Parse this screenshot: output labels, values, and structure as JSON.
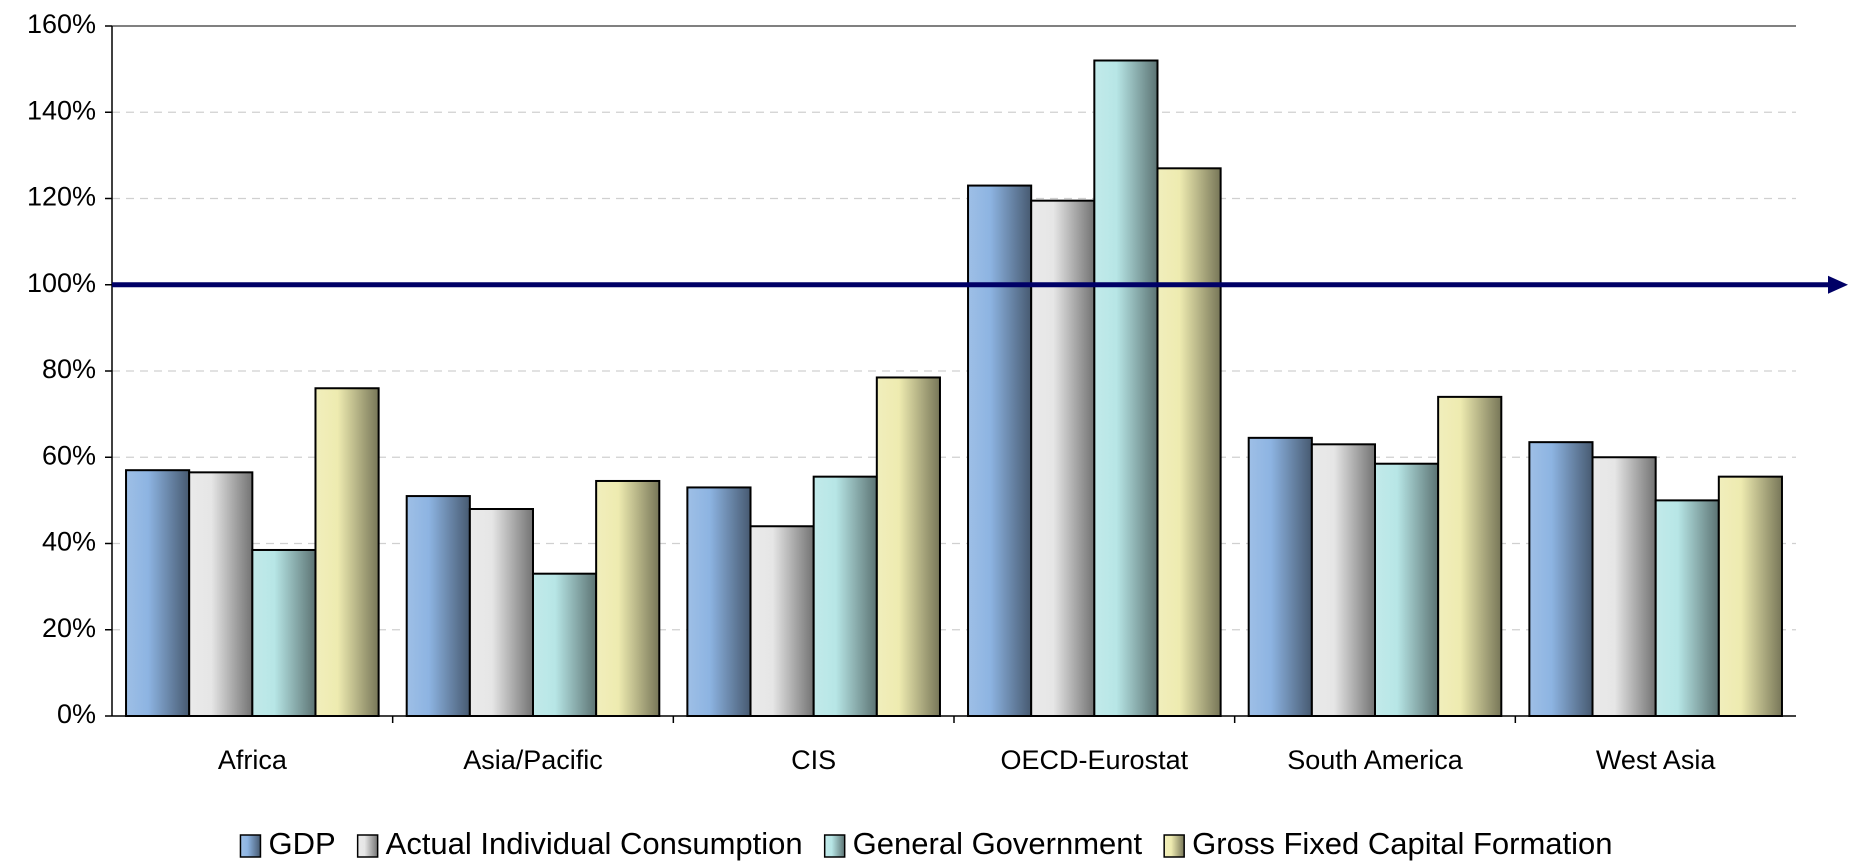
{
  "chart_data": {
    "type": "bar",
    "categories": [
      "Africa",
      "Asia/Pacific",
      "CIS",
      "OECD-Eurostat",
      "South America",
      "West Asia"
    ],
    "series": [
      {
        "name": "GDP",
        "color": "#8db4e2",
        "values": [
          57,
          51,
          53,
          123,
          64.5,
          63.5
        ]
      },
      {
        "name": "Actual Individual Consumption",
        "color": "#e6e6e6",
        "values": [
          56.5,
          48,
          44,
          119.5,
          63,
          60
        ]
      },
      {
        "name": "General Government",
        "color": "#b7e6e6",
        "values": [
          38.5,
          33,
          55.5,
          152,
          58.5,
          50
        ]
      },
      {
        "name": "Gross Fixed Capital Formation",
        "color": "#eeebb0",
        "values": [
          76,
          54.5,
          78.5,
          127,
          74,
          55.5
        ]
      }
    ],
    "reference_line": 100,
    "ylim": [
      0,
      160
    ],
    "yticks": [
      {
        "value": 0,
        "label": "0%"
      },
      {
        "value": 20,
        "label": "20%"
      },
      {
        "value": 40,
        "label": "40%"
      },
      {
        "value": 60,
        "label": "60%"
      },
      {
        "value": 80,
        "label": "80%"
      },
      {
        "value": 100,
        "label": "100%"
      },
      {
        "value": 120,
        "label": "120%"
      },
      {
        "value": 140,
        "label": "140%"
      },
      {
        "value": 160,
        "label": "160%"
      }
    ],
    "grid": true,
    "legend": "bottom"
  }
}
